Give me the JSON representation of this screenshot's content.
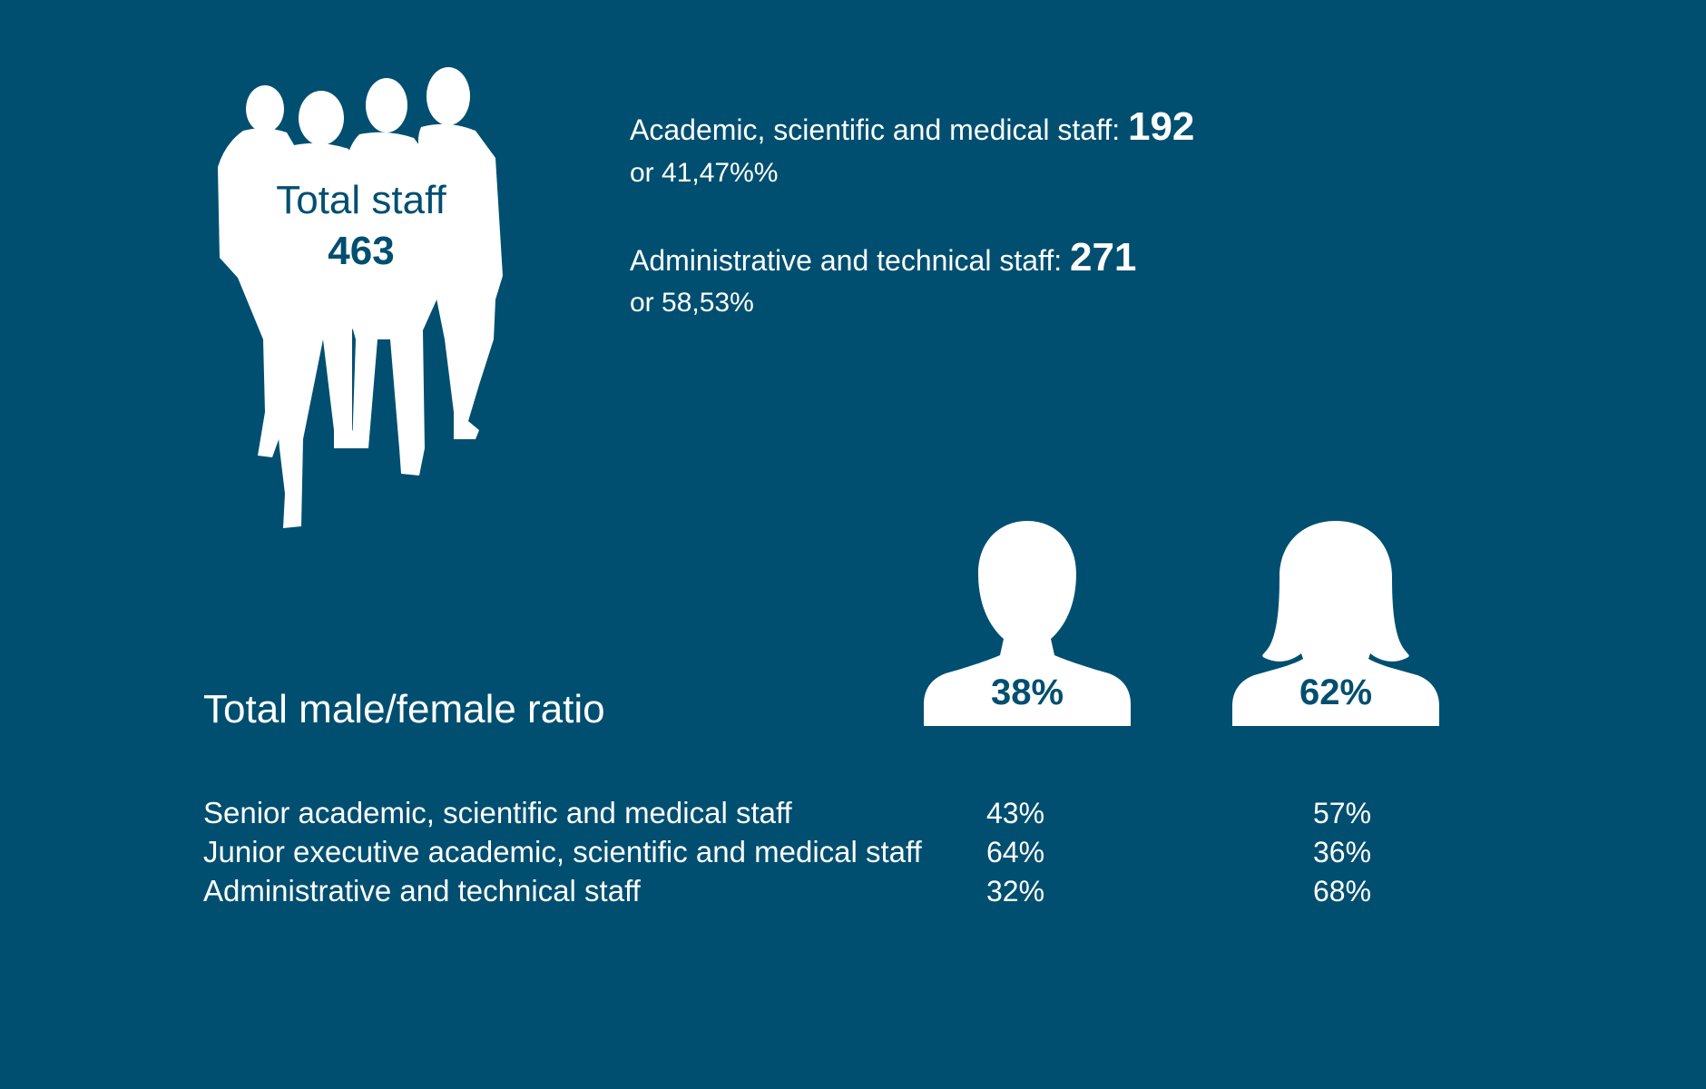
{
  "total": {
    "label": "Total staff",
    "value": "463"
  },
  "breakdown": [
    {
      "label": "Academic, scientific and medical staff: ",
      "value": "192",
      "share": "or 41,47%%"
    },
    {
      "label": "Administrative and technical staff: ",
      "value": "271",
      "share": "or 58,53%"
    }
  ],
  "ratio": {
    "title": "Total male/female ratio",
    "male_pct": "38%",
    "female_pct": "62%"
  },
  "table": {
    "rows": [
      {
        "label": "Senior academic, scientific and medical staff",
        "male": "43%",
        "female": "57%"
      },
      {
        "label": "Junior executive academic, scientific and medical staff",
        "male": "64%",
        "female": "36%"
      },
      {
        "label": "Administrative and technical staff",
        "male": "32%",
        "female": "68%"
      }
    ]
  },
  "colors": {
    "background": "#004f70",
    "foreground": "#ffffff"
  },
  "icons": [
    "people-group-icon",
    "male-bust-icon",
    "female-bust-icon"
  ]
}
